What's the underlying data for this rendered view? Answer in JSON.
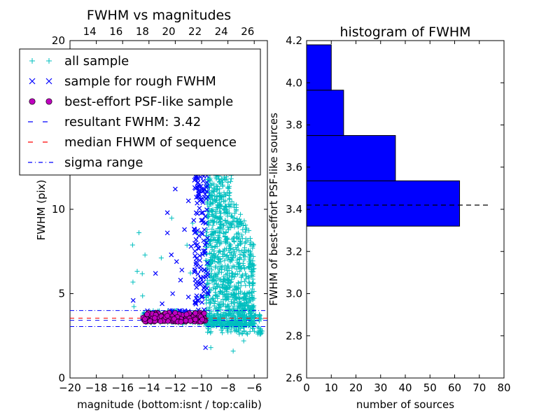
{
  "chart_data": [
    {
      "type": "scatter",
      "title": "FWHM vs magnitudes",
      "xlabel": "magnitude (bottom:isnt / top:calib)",
      "ylabel": "FWHM (pix)",
      "xlim": [
        -20,
        -5
      ],
      "ylim": [
        0,
        20
      ],
      "x_ticks": [
        -20,
        -18,
        -16,
        -14,
        -12,
        -10,
        -8,
        -6
      ],
      "x_tick_labels": [
        "−20",
        "−18",
        "−16",
        "−14",
        "−12",
        "−10",
        "−8",
        "−6"
      ],
      "y_ticks": [
        0,
        5,
        10,
        20
      ],
      "y_tick_labels": [
        "0",
        "5",
        "10",
        "20"
      ],
      "top_axis": {
        "ticks": [
          14,
          16,
          18,
          20,
          22,
          24,
          26
        ],
        "tick_labels": [
          "14",
          "16",
          "18",
          "20",
          "22",
          "24",
          "26"
        ],
        "offset": 32.5
      },
      "legend_position": "upper-left",
      "colors": {
        "all_sample": "#00bfbf",
        "rough": "#0000ff",
        "psf": "#bf00bf",
        "resultant": "#0000ff",
        "median": "#ff0000",
        "sigma": "#0000ff"
      },
      "series": [
        {
          "name": "all sample",
          "marker": "plus",
          "color": "#00bfbf",
          "description_x_range": [
            -15.5,
            -5.5
          ],
          "description_y_range": [
            1.7,
            19.5
          ]
        },
        {
          "name": "sample for rough FWHM",
          "marker": "x",
          "color": "#0000ff",
          "description_x_range": [
            -14.5,
            -9.5
          ],
          "description_y_range": [
            1.8,
            12.5
          ]
        },
        {
          "name": "best-effort PSF-like sample",
          "marker": "circle",
          "color": "#bf00bf",
          "description_x_range": [
            -14.5,
            -9.7
          ],
          "description_y_range": [
            3.3,
            3.9
          ]
        }
      ],
      "lines": [
        {
          "name": "resultant FWHM: 3.42",
          "y": 3.42,
          "style": "dashed",
          "color": "#0000ff"
        },
        {
          "name": "median FHWM of sequence",
          "y": 3.55,
          "style": "dashed",
          "color": "#ff0000"
        },
        {
          "name": "sigma range",
          "y": [
            3.05,
            4.0
          ],
          "style": "dashdot",
          "color": "#0000ff"
        }
      ]
    },
    {
      "type": "bar",
      "orientation": "horizontal",
      "title": "histogram of FWHM",
      "xlabel": "number of sources",
      "ylabel": "FWHM of best-effort PSF-like sources",
      "xlim": [
        0,
        80
      ],
      "ylim": [
        2.6,
        4.2
      ],
      "x_ticks": [
        0,
        10,
        20,
        30,
        40,
        50,
        60,
        70,
        80
      ],
      "y_ticks": [
        2.6,
        2.8,
        3.0,
        3.2,
        3.4,
        3.6,
        3.8,
        4.0,
        4.2
      ],
      "y_tick_labels": [
        "2.6",
        "2.8",
        "3.0",
        "3.2",
        "3.4",
        "3.6",
        "3.8",
        "4.0",
        "4.2"
      ],
      "bar_color": "#0000ff",
      "bins": [
        {
          "lo": 3.32,
          "hi": 3.535,
          "count": 62
        },
        {
          "lo": 3.535,
          "hi": 3.75,
          "count": 36
        },
        {
          "lo": 3.75,
          "hi": 3.965,
          "count": 15
        },
        {
          "lo": 3.965,
          "hi": 4.18,
          "count": 10
        }
      ],
      "reference_line": {
        "y": 3.42,
        "x_range": [
          0,
          74
        ],
        "style": "dashed",
        "color": "#000000"
      }
    }
  ]
}
